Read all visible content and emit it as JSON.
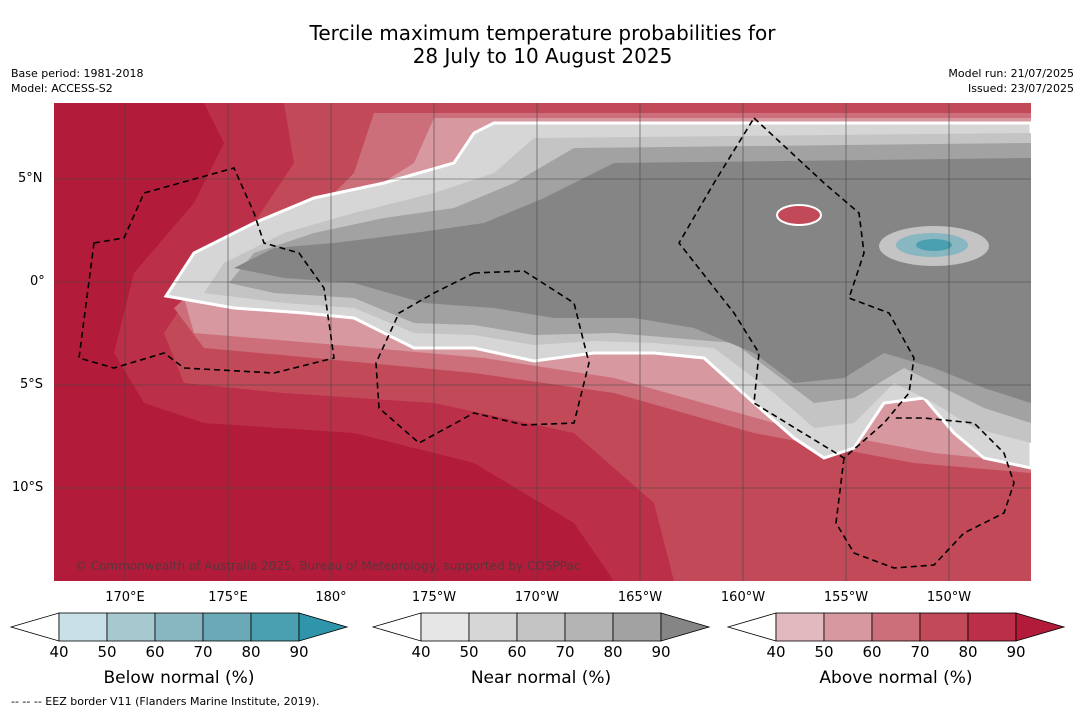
{
  "title_line1": "Tercile maximum temperature probabilities for",
  "title_line2": "28 July to 10 August 2025",
  "base_period": "Base period: 1981-2018",
  "model": "Model: ACCESS-S2",
  "model_run": "Model run: 21/07/2025",
  "issued": "Issued: 23/07/2025",
  "map": {
    "lat_labels": [
      "5°N",
      "0°",
      "5°S",
      "10°S"
    ],
    "lon_labels": [
      "170°E",
      "175°E",
      "180°",
      "175°W",
      "170°W",
      "165°W",
      "160°W",
      "155°W",
      "150°W"
    ],
    "copyright": "© Commonwealth of Australia 2025, Bureau of Meteorology, supported by COSPPac",
    "colors": {
      "above_90": "#b21c3a",
      "above_80": "#bb3048",
      "above_70": "#c24a58",
      "above_60": "#cc6f7a",
      "above_50": "#d7989f",
      "near_90": "#858585",
      "near_80": "#a2a2a2",
      "near_60": "#c4c4c4",
      "near_50": "#d6d6d6",
      "below_60": "#88b6c1",
      "below_80": "#4a9fb0"
    }
  },
  "legends": [
    {
      "title": "Below normal (%)",
      "ticks": [
        "40",
        "50",
        "60",
        "70",
        "80",
        "90"
      ],
      "colors": [
        "#ffffff",
        "#c8e1e7",
        "#a6c9cf",
        "#88b6c1",
        "#6aaab6",
        "#4a9fb0",
        "#2e95ab"
      ]
    },
    {
      "title": "Near normal (%)",
      "ticks": [
        "40",
        "50",
        "60",
        "70",
        "80",
        "90"
      ],
      "colors": [
        "#ffffff",
        "#e6e6e6",
        "#d6d6d6",
        "#c4c4c4",
        "#b4b4b4",
        "#a2a2a2",
        "#858585"
      ]
    },
    {
      "title": "Above normal (%)",
      "ticks": [
        "40",
        "50",
        "60",
        "70",
        "80",
        "90"
      ],
      "colors": [
        "#ffffff",
        "#e2b9be",
        "#d7989f",
        "#cc6f7a",
        "#c24a58",
        "#bb3048",
        "#b21c3a"
      ]
    }
  ],
  "footnote": "-- -- -- EEZ border V11 (Flanders Marine Institute, 2019)."
}
